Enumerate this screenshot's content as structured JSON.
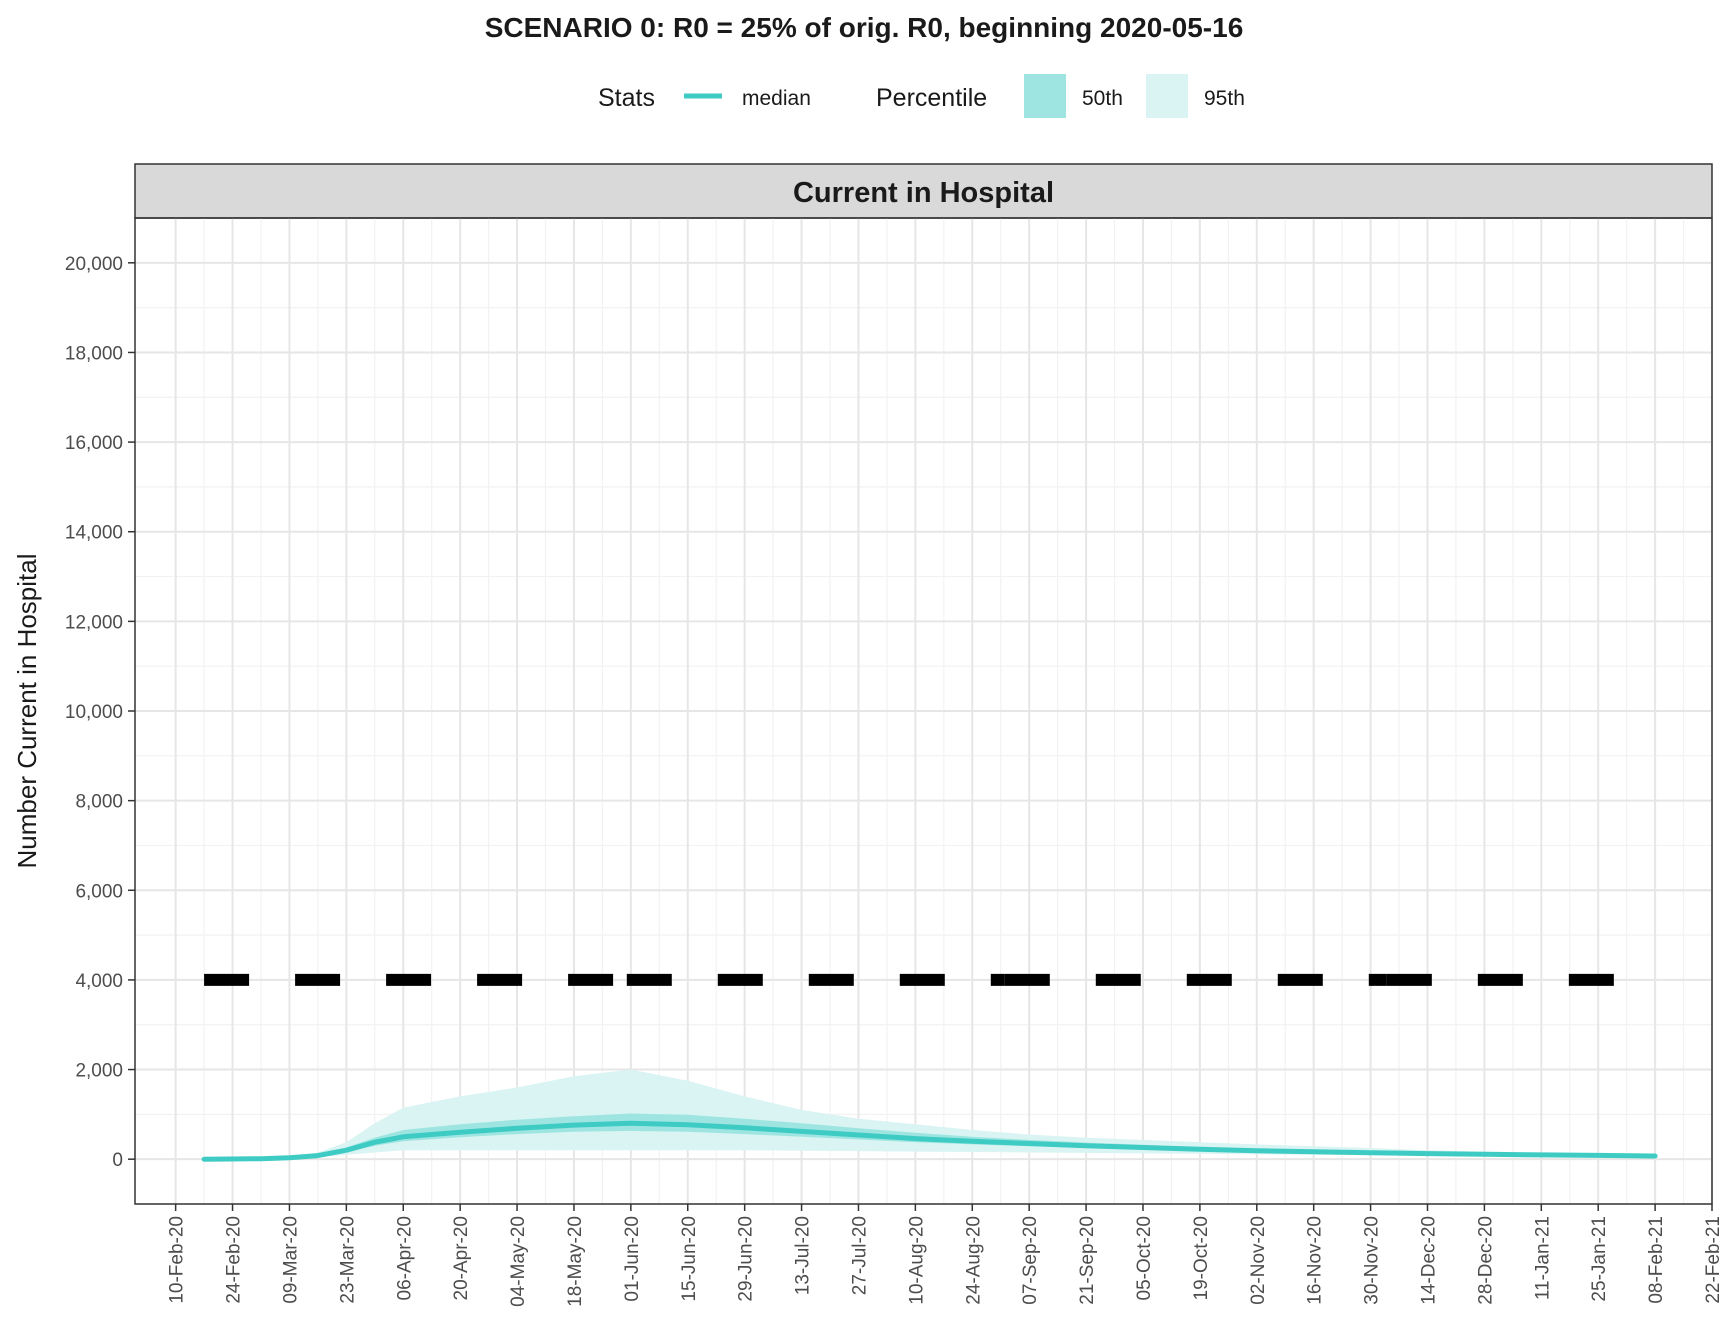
{
  "title": "SCENARIO 0: R0 = 25% of orig. R0, beginning 2020-05-16",
  "legend": {
    "stats_title": "Stats",
    "median_label": "median",
    "percentile_title": "Percentile",
    "p50_label": "50th",
    "p95_label": "95th"
  },
  "colors": {
    "median": "#3ecbc3",
    "p50": "#9ee5e1",
    "p95": "#d9f4f2",
    "threshold": "#000000",
    "strip": "#d9d9d9",
    "grid_major": "#e6e6e6",
    "grid_minor": "#f2f2f2"
  },
  "chart_data": {
    "type": "area",
    "panel_title": "Current in Hospital",
    "title": "SCENARIO 0: R0 = 25% of orig. R0, beginning 2020-05-16",
    "xlabel": "",
    "ylabel": "Number  Current in Hospital",
    "xlim": [
      "2020-01-31",
      "2021-02-22"
    ],
    "ylim": [
      -1000,
      21000
    ],
    "y_ticks": [
      0,
      2000,
      4000,
      6000,
      8000,
      10000,
      12000,
      14000,
      16000,
      18000,
      20000
    ],
    "y_tick_labels": [
      "0",
      "2,000",
      "4,000",
      "6,000",
      "8,000",
      "10,000",
      "12,000",
      "14,000",
      "16,000",
      "18,000",
      "20,000"
    ],
    "x_ticks": [
      "2020-02-10",
      "2020-02-24",
      "2020-03-09",
      "2020-03-23",
      "2020-04-06",
      "2020-04-20",
      "2020-05-04",
      "2020-05-18",
      "2020-06-01",
      "2020-06-15",
      "2020-06-29",
      "2020-07-13",
      "2020-07-27",
      "2020-08-10",
      "2020-08-24",
      "2020-09-07",
      "2020-09-21",
      "2020-10-05",
      "2020-10-19",
      "2020-11-02",
      "2020-11-16",
      "2020-11-30",
      "2020-12-14",
      "2020-12-28",
      "2021-01-11",
      "2021-01-25",
      "2021-02-08",
      "2021-02-22"
    ],
    "x_tick_labels": [
      "10-Feb-20",
      "24-Feb-20",
      "09-Mar-20",
      "23-Mar-20",
      "06-Apr-20",
      "20-Apr-20",
      "04-May-20",
      "18-May-20",
      "01-Jun-20",
      "15-Jun-20",
      "29-Jun-20",
      "13-Jul-20",
      "27-Jul-20",
      "10-Aug-20",
      "24-Aug-20",
      "07-Sep-20",
      "21-Sep-20",
      "05-Oct-20",
      "19-Oct-20",
      "02-Nov-20",
      "16-Nov-20",
      "30-Nov-20",
      "14-Dec-20",
      "28-Dec-20",
      "11-Jan-21",
      "25-Jan-21",
      "08-Feb-21",
      "22-Feb-21"
    ],
    "grid": true,
    "legend_position": "top",
    "series": [
      {
        "name": "median",
        "x": [
          "2020-02-17",
          "2020-03-02",
          "2020-03-09",
          "2020-03-16",
          "2020-03-23",
          "2020-03-30",
          "2020-04-06",
          "2020-04-20",
          "2020-05-04",
          "2020-05-18",
          "2020-06-01",
          "2020-06-15",
          "2020-06-29",
          "2020-07-13",
          "2020-07-27",
          "2020-08-10",
          "2020-08-24",
          "2020-09-07",
          "2020-09-21",
          "2020-10-05",
          "2020-10-19",
          "2020-11-02",
          "2020-11-16",
          "2020-11-30",
          "2020-12-14",
          "2020-12-28",
          "2021-01-11",
          "2021-01-25",
          "2021-02-08"
        ],
        "y": [
          0,
          10,
          30,
          80,
          200,
          380,
          500,
          600,
          690,
          760,
          800,
          770,
          700,
          620,
          540,
          460,
          400,
          350,
          300,
          260,
          220,
          190,
          165,
          145,
          125,
          110,
          95,
          85,
          70
        ]
      },
      {
        "name": "50th",
        "lower": [
          0,
          8,
          25,
          60,
          150,
          300,
          400,
          490,
          560,
          610,
          630,
          610,
          560,
          500,
          440,
          380,
          330,
          290,
          250,
          220,
          190,
          165,
          145,
          125,
          110,
          95,
          85,
          75,
          60
        ],
        "upper": [
          0,
          12,
          38,
          100,
          260,
          480,
          650,
          780,
          880,
          960,
          1020,
          990,
          900,
          800,
          690,
          590,
          500,
          430,
          370,
          320,
          270,
          230,
          195,
          170,
          150,
          130,
          115,
          100,
          85
        ]
      },
      {
        "name": "95th",
        "lower": [
          0,
          5,
          15,
          40,
          100,
          150,
          200,
          200,
          200,
          200,
          200,
          200,
          200,
          190,
          180,
          170,
          160,
          150,
          140,
          130,
          120,
          110,
          100,
          90,
          80,
          70,
          60,
          55,
          50
        ],
        "upper": [
          0,
          15,
          50,
          150,
          380,
          800,
          1150,
          1400,
          1600,
          1850,
          2000,
          1750,
          1400,
          1100,
          900,
          780,
          650,
          550,
          480,
          430,
          380,
          330,
          290,
          250,
          200,
          170,
          150,
          130,
          110
        ]
      },
      {
        "name": "threshold",
        "y": 4000
      }
    ]
  }
}
